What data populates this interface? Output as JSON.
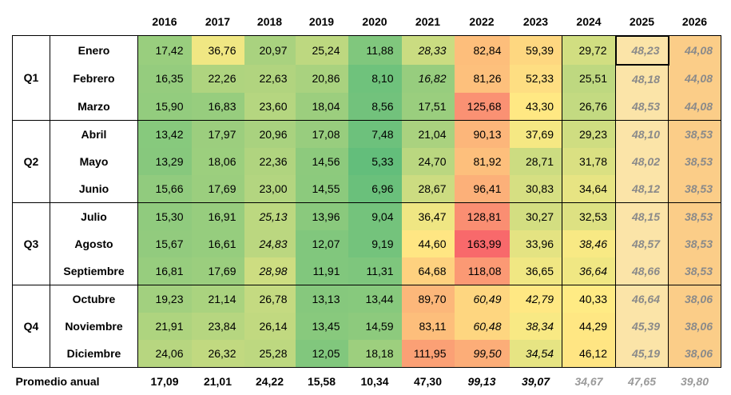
{
  "years": [
    "2016",
    "2017",
    "2018",
    "2019",
    "2020",
    "2021",
    "2022",
    "2023",
    "2024",
    "2025",
    "2026"
  ],
  "quarters": [
    {
      "label": "Q1",
      "months": [
        {
          "name": "Enero",
          "values": [
            "17,42",
            "36,76",
            "20,97",
            "25,24",
            "11,88",
            "28,33",
            "82,84",
            "59,39",
            "29,72",
            "48,23",
            "44,08"
          ]
        },
        {
          "name": "Febrero",
          "values": [
            "16,35",
            "22,26",
            "22,63",
            "20,86",
            "8,10",
            "16,82",
            "81,26",
            "52,33",
            "25,51",
            "48,18",
            "44,08"
          ]
        },
        {
          "name": "Marzo",
          "values": [
            "15,90",
            "16,83",
            "23,60",
            "18,04",
            "8,56",
            "17,51",
            "125,68",
            "43,30",
            "26,76",
            "48,53",
            "44,08"
          ]
        }
      ]
    },
    {
      "label": "Q2",
      "months": [
        {
          "name": "Abril",
          "values": [
            "13,42",
            "17,97",
            "20,96",
            "17,08",
            "7,48",
            "21,04",
            "90,13",
            "37,69",
            "29,23",
            "48,10",
            "38,53"
          ]
        },
        {
          "name": "Mayo",
          "values": [
            "13,29",
            "18,06",
            "22,36",
            "14,56",
            "5,33",
            "24,70",
            "81,92",
            "28,71",
            "31,78",
            "48,02",
            "38,53"
          ]
        },
        {
          "name": "Junio",
          "values": [
            "15,66",
            "17,69",
            "23,00",
            "14,55",
            "6,96",
            "28,67",
            "96,41",
            "30,83",
            "34,64",
            "48,12",
            "38,53"
          ]
        }
      ]
    },
    {
      "label": "Q3",
      "months": [
        {
          "name": "Julio",
          "values": [
            "15,30",
            "16,91",
            "25,13",
            "13,96",
            "9,04",
            "36,47",
            "128,81",
            "30,27",
            "32,53",
            "48,15",
            "38,53"
          ]
        },
        {
          "name": "Agosto",
          "values": [
            "15,67",
            "16,61",
            "24,83",
            "12,07",
            "9,19",
            "44,60",
            "163,99",
            "33,96",
            "38,46",
            "48,57",
            "38,53"
          ]
        },
        {
          "name": "Septiembre",
          "values": [
            "16,81",
            "17,69",
            "28,98",
            "11,91",
            "11,31",
            "64,68",
            "118,08",
            "36,65",
            "36,64",
            "48,66",
            "38,53"
          ]
        }
      ]
    },
    {
      "label": "Q4",
      "months": [
        {
          "name": "Octubre",
          "values": [
            "19,23",
            "21,14",
            "26,78",
            "13,13",
            "13,44",
            "89,70",
            "60,49",
            "42,79",
            "40,33",
            "46,64",
            "38,06"
          ]
        },
        {
          "name": "Noviembre",
          "values": [
            "21,91",
            "23,84",
            "26,14",
            "13,45",
            "14,59",
            "83,11",
            "60,48",
            "38,34",
            "44,29",
            "45,39",
            "38,06"
          ]
        },
        {
          "name": "Diciembre",
          "values": [
            "24,06",
            "26,32",
            "25,28",
            "12,05",
            "18,18",
            "111,95",
            "99,50",
            "34,54",
            "46,12",
            "45,19",
            "38,06"
          ]
        }
      ]
    }
  ],
  "average": {
    "label": "Promedio anual",
    "values": [
      "17,09",
      "21,01",
      "24,22",
      "15,58",
      "10,34",
      "47,30",
      "99,13",
      "39,07",
      "34,67",
      "47,65",
      "39,80"
    ]
  },
  "italic_cells": [
    [
      0,
      5
    ],
    [
      1,
      5
    ],
    [
      6,
      2
    ],
    [
      7,
      2
    ],
    [
      8,
      2
    ],
    [
      7,
      8
    ],
    [
      8,
      8
    ],
    [
      9,
      6
    ],
    [
      10,
      6
    ],
    [
      11,
      6
    ],
    [
      9,
      7
    ],
    [
      10,
      7
    ],
    [
      11,
      7
    ]
  ],
  "italic_avg": [
    6,
    7
  ],
  "grey_avg": [
    8,
    9,
    10
  ],
  "forecast_col_color_2025": "#fbe4a8",
  "forecast_col_color_2026": "#fbcd88",
  "color_scale": {
    "low": "#63be7b",
    "mid": "#ffeb84",
    "high": "#f8696b",
    "min": 5.33,
    "mid_value": 40,
    "max": 163.99
  },
  "highlighted_cell": [
    0,
    9
  ]
}
